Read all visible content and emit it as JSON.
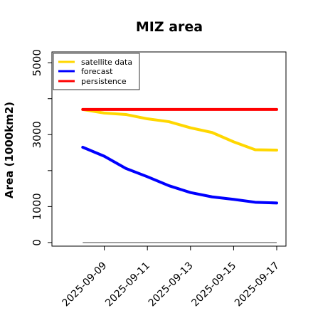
{
  "chart_data": {
    "type": "line",
    "title": "MIZ area",
    "xlabel": "",
    "ylabel": "Area (1000km2)",
    "x": [
      "2025-09-08",
      "2025-09-09",
      "2025-09-10",
      "2025-09-11",
      "2025-09-12",
      "2025-09-13",
      "2025-09-14",
      "2025-09-15",
      "2025-09-16",
      "2025-09-17"
    ],
    "xticks": [
      {
        "label": "2025-09-09",
        "color": "#228b22"
      },
      {
        "label": "2025-09-11",
        "color": "#000000"
      },
      {
        "label": "2025-09-13",
        "color": "#000000"
      },
      {
        "label": "2025-09-15",
        "color": "#000000"
      },
      {
        "label": "2025-09-17",
        "color": "#000000"
      }
    ],
    "yticks_labeled": [
      "0",
      "1000",
      "3000",
      "5000"
    ],
    "yticks_all": [
      0,
      1000,
      2000,
      3000,
      4000,
      5000
    ],
    "ylim": [
      -100,
      5300
    ],
    "xlim": [
      "2025-09-07",
      "2025-09-17"
    ],
    "series": [
      {
        "name": "satellite data",
        "color": "#ffd700",
        "values": [
          3700,
          3600,
          3560,
          3440,
          3360,
          3190,
          3060,
          2800,
          2580,
          2570
        ]
      },
      {
        "name": "forecast",
        "color": "#0000ff",
        "values": [
          2650,
          2400,
          2060,
          1830,
          1580,
          1390,
          1270,
          1200,
          1120,
          1100
        ]
      },
      {
        "name": "persistence",
        "color": "#ff0000",
        "values": [
          3700,
          3700,
          3700,
          3700,
          3700,
          3700,
          3700,
          3700,
          3700,
          3700
        ]
      }
    ],
    "reference_line": {
      "y": 0,
      "color": "#808080"
    },
    "legend": {
      "position": "top-left"
    },
    "grid": false
  }
}
